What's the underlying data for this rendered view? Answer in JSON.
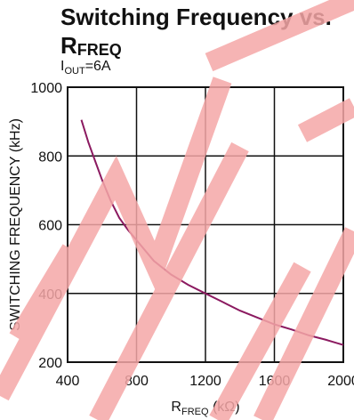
{
  "chart_data": {
    "type": "line",
    "title_main": "Switching Frequency vs.",
    "title_r": "R",
    "title_sub": "FREQ",
    "condition_prefix": "I",
    "condition_sub": "OUT",
    "condition_value": "=6A",
    "xlabel_main": "R",
    "xlabel_sub": "FREQ",
    "xlabel_unit": " (kΩ)",
    "ylabel": "SWITCHING FREQUENCY (kHz)",
    "xlim": [
      400,
      2000
    ],
    "ylim": [
      200,
      1000
    ],
    "xticks": [
      "400",
      "800",
      "1200",
      "1600",
      "2000"
    ],
    "yticks": [
      "200",
      "400",
      "600",
      "800",
      "1000"
    ],
    "grid": true,
    "series": [
      {
        "color": "#8b1a60",
        "x": [
          480,
          520,
          560,
          600,
          650,
          700,
          750,
          800,
          900,
          1000,
          1100,
          1200,
          1300,
          1400,
          1500,
          1600,
          1700,
          1800,
          1900,
          2000
        ],
        "y": [
          905,
          840,
          785,
          730,
          670,
          620,
          585,
          555,
          495,
          455,
          425,
          400,
          375,
          350,
          330,
          310,
          295,
          278,
          265,
          250
        ]
      }
    ]
  },
  "watermark": {
    "color": "#f5a7a7"
  }
}
